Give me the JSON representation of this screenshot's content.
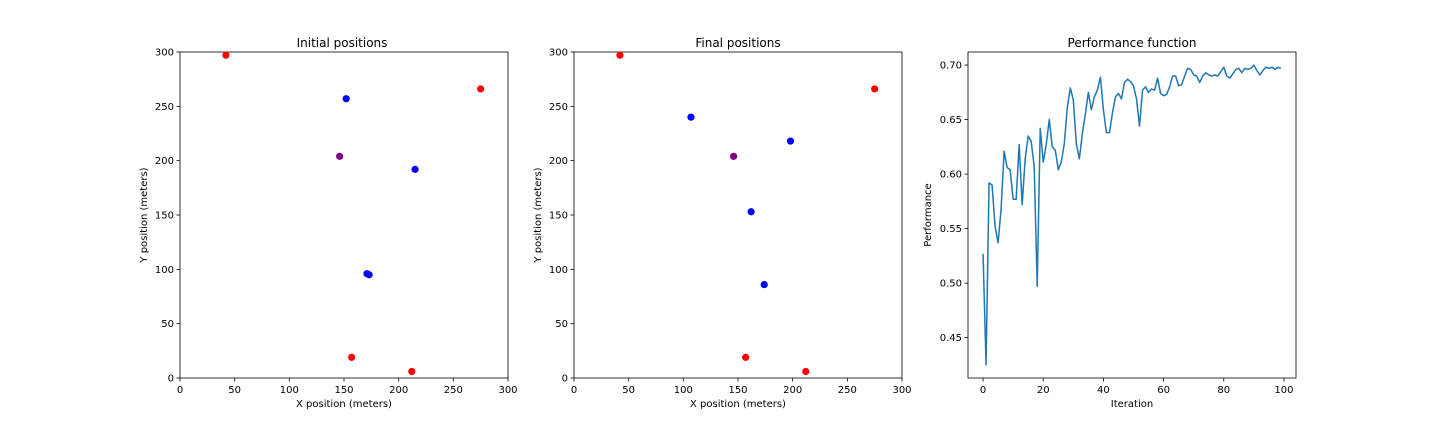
{
  "chart_data": [
    {
      "type": "scatter",
      "title": "Initial positions",
      "xlabel": "X position (meters)",
      "ylabel": "Y position (meters)",
      "xlim": [
        0,
        300
      ],
      "ylim": [
        0,
        300
      ],
      "xticks": [
        0,
        50,
        100,
        150,
        200,
        250,
        300
      ],
      "yticks": [
        0,
        50,
        100,
        150,
        200,
        250,
        300
      ],
      "grid": false,
      "series": [
        {
          "color": "#ff0000",
          "points": [
            [
              42,
              297
            ],
            [
              275,
              266
            ],
            [
              157,
              19
            ],
            [
              212,
              6
            ]
          ]
        },
        {
          "color": "#0000ff",
          "points": [
            [
              152,
              257
            ],
            [
              215,
              192
            ],
            [
              171,
              96
            ],
            [
              173,
              95
            ]
          ]
        },
        {
          "color": "#800080",
          "points": [
            [
              146,
              204
            ]
          ]
        }
      ]
    },
    {
      "type": "scatter",
      "title": "Final positions",
      "xlabel": "X position (meters)",
      "ylabel": "Y position (meters)",
      "xlim": [
        0,
        300
      ],
      "ylim": [
        0,
        300
      ],
      "xticks": [
        0,
        50,
        100,
        150,
        200,
        250,
        300
      ],
      "yticks": [
        0,
        50,
        100,
        150,
        200,
        250,
        300
      ],
      "grid": false,
      "series": [
        {
          "color": "#ff0000",
          "points": [
            [
              42,
              297
            ],
            [
              275,
              266
            ],
            [
              157,
              19
            ],
            [
              212,
              6
            ]
          ]
        },
        {
          "color": "#0000ff",
          "points": [
            [
              107,
              240
            ],
            [
              198,
              218
            ],
            [
              162,
              153
            ],
            [
              174,
              86
            ]
          ]
        },
        {
          "color": "#800080",
          "points": [
            [
              146,
              204
            ]
          ]
        }
      ]
    },
    {
      "type": "line",
      "title": "Performance function",
      "xlabel": "Iteration",
      "ylabel": "Performance",
      "xlim": [
        -5,
        104
      ],
      "ylim": [
        0.413,
        0.712
      ],
      "xticks": [
        0,
        20,
        40,
        60,
        80,
        100
      ],
      "yticks": [
        0.45,
        0.5,
        0.55,
        0.6,
        0.65,
        0.7
      ],
      "ytick_labels": [
        "0.45",
        "0.50",
        "0.55",
        "0.60",
        "0.65",
        "0.70"
      ],
      "grid": false,
      "series": [
        {
          "color": "#1f77b4",
          "values": [
            0.527,
            0.425,
            0.592,
            0.59,
            0.552,
            0.537,
            0.568,
            0.621,
            0.606,
            0.604,
            0.577,
            0.577,
            0.627,
            0.572,
            0.614,
            0.635,
            0.63,
            0.607,
            0.497,
            0.642,
            0.611,
            0.627,
            0.65,
            0.625,
            0.622,
            0.604,
            0.611,
            0.628,
            0.661,
            0.679,
            0.668,
            0.628,
            0.614,
            0.637,
            0.655,
            0.675,
            0.659,
            0.671,
            0.677,
            0.689,
            0.659,
            0.638,
            0.638,
            0.656,
            0.671,
            0.674,
            0.669,
            0.684,
            0.687,
            0.685,
            0.681,
            0.669,
            0.644,
            0.677,
            0.68,
            0.675,
            0.678,
            0.677,
            0.688,
            0.674,
            0.672,
            0.673,
            0.68,
            0.69,
            0.69,
            0.681,
            0.682,
            0.69,
            0.697,
            0.696,
            0.691,
            0.69,
            0.684,
            0.69,
            0.693,
            0.691,
            0.69,
            0.691,
            0.69,
            0.694,
            0.698,
            0.69,
            0.688,
            0.692,
            0.696,
            0.697,
            0.693,
            0.697,
            0.696,
            0.697,
            0.7,
            0.695,
            0.691,
            0.695,
            0.698,
            0.697,
            0.698,
            0.696,
            0.698,
            0.697
          ]
        }
      ]
    }
  ]
}
